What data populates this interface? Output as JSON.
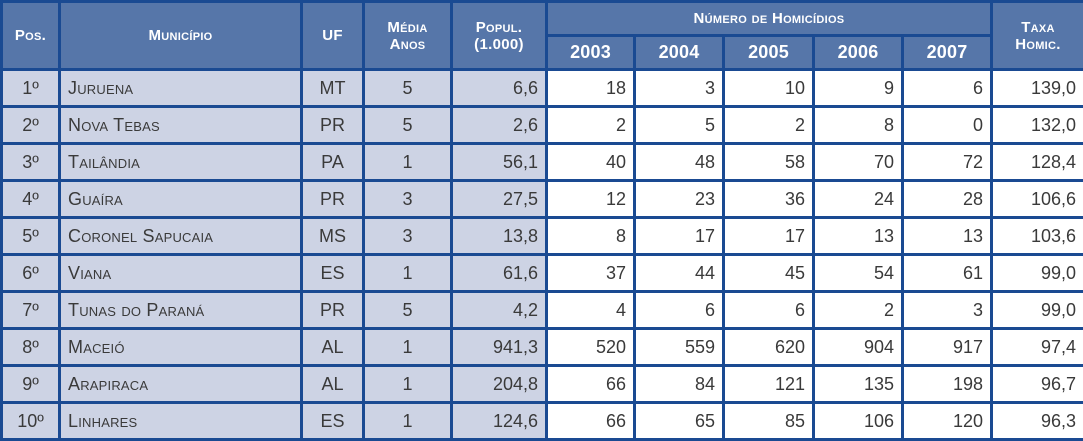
{
  "chart_data": {
    "type": "table",
    "header": {
      "pos": "Pos.",
      "municipio": "Município",
      "uf": "UF",
      "media_anos_line1": "Média",
      "media_anos_line2": "Anos",
      "popul_line1": "Popul.",
      "popul_line2": "(1.000)",
      "homicidios_group": "Número de Homicídios",
      "years": [
        "2003",
        "2004",
        "2005",
        "2006",
        "2007"
      ],
      "taxa_line1": "Taxa",
      "taxa_line2": "Homic."
    },
    "rows": [
      {
        "pos": "1º",
        "municipio": "Juruena",
        "uf": "MT",
        "media_anos": "5",
        "popul": "6,6",
        "homicidios": [
          "18",
          "3",
          "10",
          "9",
          "6"
        ],
        "taxa": "139,0"
      },
      {
        "pos": "2º",
        "municipio": "Nova Tebas",
        "uf": "PR",
        "media_anos": "5",
        "popul": "2,6",
        "homicidios": [
          "2",
          "5",
          "2",
          "8",
          "0"
        ],
        "taxa": "132,0"
      },
      {
        "pos": "3º",
        "municipio": "Tailândia",
        "uf": "PA",
        "media_anos": "1",
        "popul": "56,1",
        "homicidios": [
          "40",
          "48",
          "58",
          "70",
          "72"
        ],
        "taxa": "128,4"
      },
      {
        "pos": "4º",
        "municipio": "Guaíra",
        "uf": "PR",
        "media_anos": "3",
        "popul": "27,5",
        "homicidios": [
          "12",
          "23",
          "36",
          "24",
          "28"
        ],
        "taxa": "106,6"
      },
      {
        "pos": "5º",
        "municipio": "Coronel Sapucaia",
        "uf": "MS",
        "media_anos": "3",
        "popul": "13,8",
        "homicidios": [
          "8",
          "17",
          "17",
          "13",
          "13"
        ],
        "taxa": "103,6"
      },
      {
        "pos": "6º",
        "municipio": "Viana",
        "uf": "ES",
        "media_anos": "1",
        "popul": "61,6",
        "homicidios": [
          "37",
          "44",
          "45",
          "54",
          "61"
        ],
        "taxa": "99,0"
      },
      {
        "pos": "7º",
        "municipio": "Tunas do Paraná",
        "uf": "PR",
        "media_anos": "5",
        "popul": "4,2",
        "homicidios": [
          "4",
          "6",
          "6",
          "2",
          "3"
        ],
        "taxa": "99,0"
      },
      {
        "pos": "8º",
        "municipio": "Maceió",
        "uf": "AL",
        "media_anos": "1",
        "popul": "941,3",
        "homicidios": [
          "520",
          "559",
          "620",
          "904",
          "917"
        ],
        "taxa": "97,4"
      },
      {
        "pos": "9º",
        "municipio": "Arapiraca",
        "uf": "AL",
        "media_anos": "1",
        "popul": "204,8",
        "homicidios": [
          "66",
          "84",
          "121",
          "135",
          "198"
        ],
        "taxa": "96,7"
      },
      {
        "pos": "10º",
        "municipio": "Linhares",
        "uf": "ES",
        "media_anos": "1",
        "popul": "124,6",
        "homicidios": [
          "66",
          "65",
          "85",
          "106",
          "120"
        ],
        "taxa": "96,3"
      }
    ]
  },
  "colors": {
    "header_bg": "#5676a9",
    "border": "#1a4a92",
    "light_bg": "#cdd3e4",
    "white_bg": "#ffffff",
    "header_text": "#ffffff",
    "cell_text": "#3a3a3a"
  }
}
